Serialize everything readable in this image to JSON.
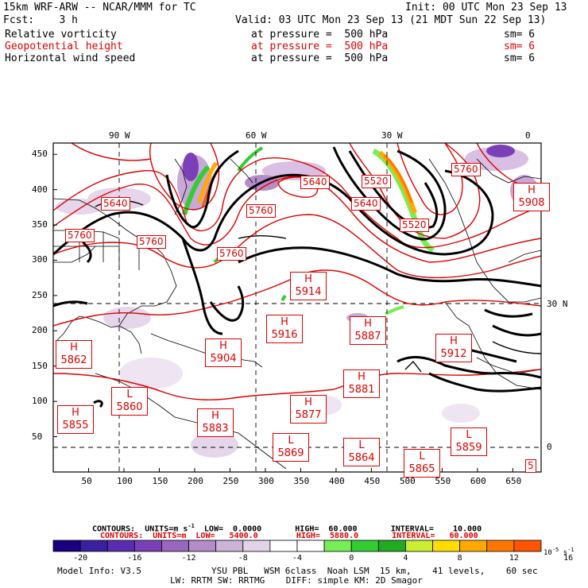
{
  "header": {
    "title": "15km WRF-ARW -- NCAR/MMM for TC",
    "init": "Init: 00 UTC Mon 23 Sep 13",
    "fcst": "Fcst:    3 h",
    "valid": "Valid: 03 UTC Mon 23 Sep 13 (21 MDT Sun 22 Sep 13)"
  },
  "fields": [
    {
      "name": "Relative vorticity",
      "level": "at pressure =  500 hPa",
      "sm": "sm= 6",
      "color": "#000000"
    },
    {
      "name": "Geopotential height",
      "level": "at pressure =  500 hPa",
      "sm": "sm= 6",
      "color": "#e00000"
    },
    {
      "name": "Horizontal wind speed",
      "level": "at pressure =  500 hPa",
      "sm": "sm= 6",
      "color": "#000000"
    }
  ],
  "axes": {
    "top_lon": [
      "90 W",
      "60 W",
      "30 W",
      "0"
    ],
    "right_lat": [
      "30 N",
      "0"
    ],
    "x_ticks": [
      "50",
      "100",
      "150",
      "200",
      "250",
      "300",
      "350",
      "400",
      "450",
      "500",
      "550",
      "600",
      "650"
    ],
    "y_ticks": [
      "50",
      "100",
      "150",
      "200",
      "250",
      "300",
      "350",
      "400",
      "450"
    ]
  },
  "highs": [
    {
      "h": "H",
      "v": "5914"
    },
    {
      "h": "H",
      "v": "5916"
    },
    {
      "h": "H",
      "v": "5887"
    },
    {
      "h": "H",
      "v": "5904"
    },
    {
      "h": "H",
      "v": "5862"
    },
    {
      "h": "H",
      "v": "5912"
    },
    {
      "h": "H",
      "v": "5881"
    },
    {
      "h": "H",
      "v": "5877"
    },
    {
      "h": "H",
      "v": "5855"
    },
    {
      "h": "H",
      "v": "5883"
    },
    {
      "h": "H",
      "v": "5908"
    }
  ],
  "lows": [
    {
      "h": "L",
      "v": "5860"
    },
    {
      "h": "L",
      "v": "5869"
    },
    {
      "h": "L",
      "v": "5864"
    },
    {
      "h": "L",
      "v": "5859"
    },
    {
      "h": "L",
      "v": "5865"
    }
  ],
  "contour_labels": [
    "5760",
    "5760",
    "5760",
    "5760",
    "5760",
    "5640",
    "5640",
    "5520",
    "5520",
    "5640",
    "5"
  ],
  "footer": {
    "contours1": "CONTOURS:  UNITS=m s",
    "contours1_sup": "-1",
    "contours1_rest": "  LOW=  0.0000       HIGH=  60.000       INTERVAL=    10.000",
    "contours2": "CONTOURS:  UNITS=m  LOW=   5400.0        HIGH=  5880.0       INTERVAL=   60.000",
    "unit_label": "10",
    "unit_exp": "-5",
    "unit_tail": " s",
    "unit_tail_exp": "-1",
    "model_info": "Model Info: V3.5",
    "physics1": "YSU PBL   WSM 6class  Noah LSM  15 km,    41 levels,    60 sec",
    "physics2": "LW: RRTM SW: RRTMG    DIFF: simple KM: 2D Smagor"
  },
  "colorbar": {
    "colors": [
      "#1a0080",
      "#3a20a0",
      "#5a2db0",
      "#7b3fb8",
      "#9966c0",
      "#b38cc8",
      "#cdb3d8",
      "#e3d3e8",
      "#ffffff",
      "#ffffff",
      "#77ee55",
      "#33cc33",
      "#22aa22",
      "#ccee33",
      "#ffdd00",
      "#ffaa00",
      "#ff7700",
      "#ff5500"
    ],
    "labels": [
      "-20",
      "-16",
      "-12",
      "-8",
      "-4",
      "0",
      "4",
      "8",
      "12",
      "16"
    ]
  }
}
